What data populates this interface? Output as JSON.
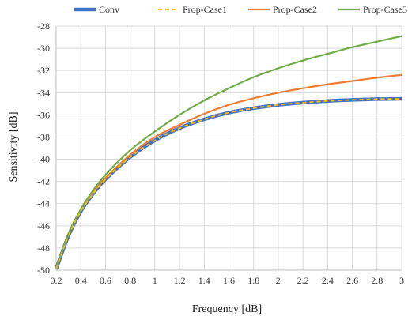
{
  "chart_data": {
    "type": "line",
    "xlabel": "Frequency [dB]",
    "ylabel": "Sensitivity [dB]",
    "xlim": [
      0.2,
      3
    ],
    "ylim": [
      -50,
      -28
    ],
    "x_ticks": [
      "0.2",
      "0.4",
      "0.6",
      "0.8",
      "1",
      "1.2",
      "1.4",
      "1.6",
      "1.8",
      "2",
      "2.2",
      "2.4",
      "2.6",
      "2.8",
      "3"
    ],
    "y_ticks": [
      "-50",
      "-48",
      "-46",
      "-44",
      "-42",
      "-40",
      "-38",
      "-36",
      "-34",
      "-32",
      "-30",
      "-28"
    ],
    "grid": true,
    "legend_position": "top",
    "x": [
      0.2,
      0.3,
      0.4,
      0.5,
      0.6,
      0.8,
      1.0,
      1.2,
      1.4,
      1.6,
      1.8,
      2.0,
      2.2,
      2.4,
      2.6,
      2.8,
      3.0
    ],
    "series": [
      {
        "name": "Conv",
        "color": "#4472c4",
        "values": [
          -49.9,
          -46.9,
          -44.7,
          -43.1,
          -41.8,
          -39.8,
          -38.3,
          -37.2,
          -36.4,
          -35.8,
          -35.4,
          -35.1,
          -34.9,
          -34.75,
          -34.65,
          -34.58,
          -34.55
        ]
      },
      {
        "name": "Prop-Case1",
        "color": "#ffc000",
        "dashed": true,
        "values": [
          -49.9,
          -46.9,
          -44.7,
          -43.1,
          -41.8,
          -39.8,
          -38.3,
          -37.2,
          -36.4,
          -35.8,
          -35.4,
          -35.1,
          -34.9,
          -34.75,
          -34.65,
          -34.58,
          -34.55
        ]
      },
      {
        "name": "Prop-Case2",
        "color": "#ed7d31",
        "values": [
          -49.85,
          -46.8,
          -44.6,
          -43.0,
          -41.7,
          -39.6,
          -38.0,
          -36.9,
          -35.9,
          -35.1,
          -34.5,
          -34.0,
          -33.6,
          -33.25,
          -32.95,
          -32.65,
          -32.4
        ]
      },
      {
        "name": "Prop-Case3",
        "color": "#70ad47",
        "values": [
          -49.8,
          -46.7,
          -44.5,
          -42.8,
          -41.4,
          -39.2,
          -37.5,
          -36.0,
          -34.7,
          -33.6,
          -32.6,
          -31.8,
          -31.1,
          -30.5,
          -29.9,
          -29.4,
          -28.9
        ]
      }
    ]
  }
}
